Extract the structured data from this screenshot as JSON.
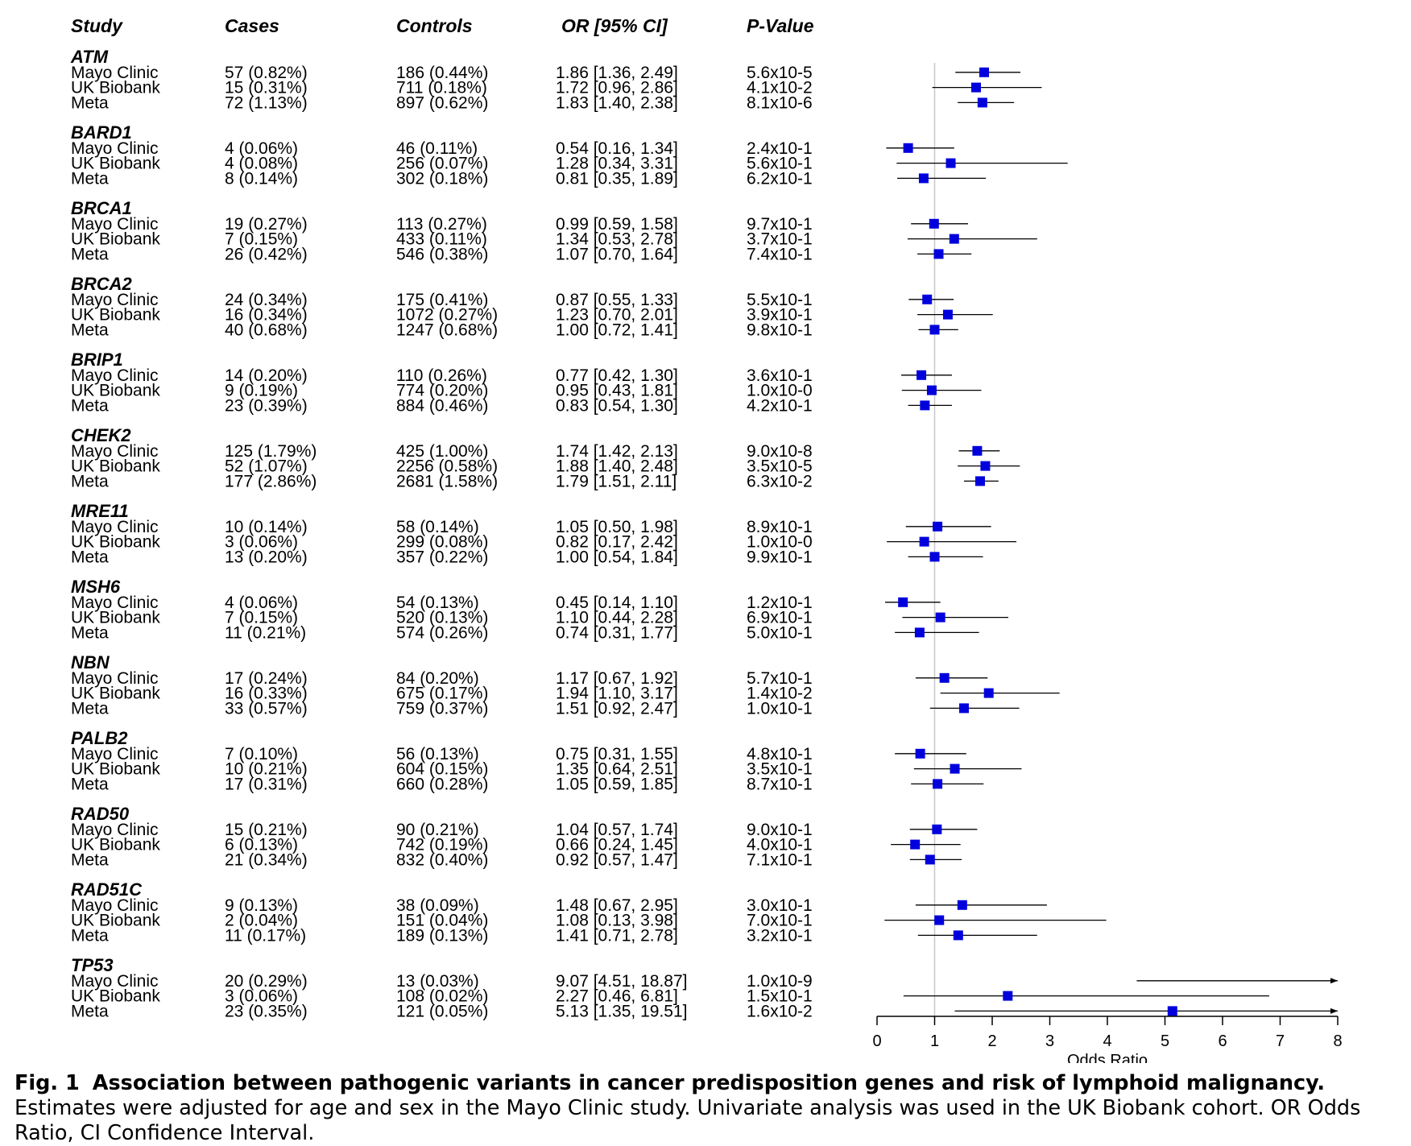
{
  "chart_data": {
    "type": "forest",
    "columns": [
      "Study",
      "Cases",
      "Controls",
      "OR [95% CI]",
      "P-Value"
    ],
    "xlabel": "Odds Ratio",
    "xlim": [
      0,
      8
    ],
    "xticks": [
      0,
      1,
      2,
      3,
      4,
      5,
      6,
      7,
      8
    ],
    "reference_line": 1,
    "marker_color": "#0000dd",
    "groups": [
      {
        "gene": "ATM",
        "rows": [
          {
            "study": "Mayo Clinic",
            "cases": "57 (0.82%)",
            "controls": "186 (0.44%)",
            "or_text": "1.86 [1.36, 2.49]",
            "p": "5.6x10-5",
            "or": 1.86,
            "lo": 1.36,
            "hi": 2.49
          },
          {
            "study": "UK Biobank",
            "cases": "15 (0.31%)",
            "controls": "711 (0.18%)",
            "or_text": "1.72 [0.96, 2.86]",
            "p": "4.1x10-2",
            "or": 1.72,
            "lo": 0.96,
            "hi": 2.86
          },
          {
            "study": "Meta",
            "cases": "72 (1.13%)",
            "controls": "897 (0.62%)",
            "or_text": "1.83 [1.40, 2.38]",
            "p": "8.1x10-6",
            "or": 1.83,
            "lo": 1.4,
            "hi": 2.38
          }
        ]
      },
      {
        "gene": "BARD1",
        "rows": [
          {
            "study": "Mayo Clinic",
            "cases": "4 (0.06%)",
            "controls": "46 (0.11%)",
            "or_text": "0.54 [0.16, 1.34]",
            "p": "2.4x10-1",
            "or": 0.54,
            "lo": 0.16,
            "hi": 1.34
          },
          {
            "study": "UK Biobank",
            "cases": "4 (0.08%)",
            "controls": "256 (0.07%)",
            "or_text": "1.28 [0.34, 3.31]",
            "p": "5.6x10-1",
            "or": 1.28,
            "lo": 0.34,
            "hi": 3.31
          },
          {
            "study": "Meta",
            "cases": "8 (0.14%)",
            "controls": "302 (0.18%)",
            "or_text": "0.81 [0.35, 1.89]",
            "p": "6.2x10-1",
            "or": 0.81,
            "lo": 0.35,
            "hi": 1.89
          }
        ]
      },
      {
        "gene": "BRCA1",
        "rows": [
          {
            "study": "Mayo Clinic",
            "cases": "19 (0.27%)",
            "controls": "113 (0.27%)",
            "or_text": "0.99 [0.59, 1.58]",
            "p": "9.7x10-1",
            "or": 0.99,
            "lo": 0.59,
            "hi": 1.58
          },
          {
            "study": "UK Biobank",
            "cases": "7 (0.15%)",
            "controls": "433 (0.11%)",
            "or_text": "1.34 [0.53, 2.78]",
            "p": "3.7x10-1",
            "or": 1.34,
            "lo": 0.53,
            "hi": 2.78
          },
          {
            "study": "Meta",
            "cases": "26 (0.42%)",
            "controls": "546 (0.38%)",
            "or_text": "1.07 [0.70, 1.64]",
            "p": "7.4x10-1",
            "or": 1.07,
            "lo": 0.7,
            "hi": 1.64
          }
        ]
      },
      {
        "gene": "BRCA2",
        "rows": [
          {
            "study": "Mayo Clinic",
            "cases": "24 (0.34%)",
            "controls": "175 (0.41%)",
            "or_text": "0.87 [0.55, 1.33]",
            "p": "5.5x10-1",
            "or": 0.87,
            "lo": 0.55,
            "hi": 1.33
          },
          {
            "study": "UK Biobank",
            "cases": "16 (0.34%)",
            "controls": "1072 (0.27%)",
            "or_text": "1.23 [0.70, 2.01]",
            "p": "3.9x10-1",
            "or": 1.23,
            "lo": 0.7,
            "hi": 2.01
          },
          {
            "study": "Meta",
            "cases": "40 (0.68%)",
            "controls": "1247 (0.68%)",
            "or_text": "1.00 [0.72, 1.41]",
            "p": "9.8x10-1",
            "or": 1.0,
            "lo": 0.72,
            "hi": 1.41
          }
        ]
      },
      {
        "gene": "BRIP1",
        "rows": [
          {
            "study": "Mayo Clinic",
            "cases": "14 (0.20%)",
            "controls": "110 (0.26%)",
            "or_text": "0.77 [0.42, 1.30]",
            "p": "3.6x10-1",
            "or": 0.77,
            "lo": 0.42,
            "hi": 1.3
          },
          {
            "study": "UK Biobank",
            "cases": "9 (0.19%)",
            "controls": "774 (0.20%)",
            "or_text": "0.95 [0.43, 1.81]",
            "p": "1.0x10-0",
            "or": 0.95,
            "lo": 0.43,
            "hi": 1.81
          },
          {
            "study": "Meta",
            "cases": "23 (0.39%)",
            "controls": "884 (0.46%)",
            "or_text": "0.83 [0.54, 1.30]",
            "p": "4.2x10-1",
            "or": 0.83,
            "lo": 0.54,
            "hi": 1.3
          }
        ]
      },
      {
        "gene": "CHEK2",
        "rows": [
          {
            "study": "Mayo Clinic",
            "cases": "125 (1.79%)",
            "controls": "425 (1.00%)",
            "or_text": "1.74 [1.42, 2.13]",
            "p": "9.0x10-8",
            "or": 1.74,
            "lo": 1.42,
            "hi": 2.13
          },
          {
            "study": "UK Biobank",
            "cases": "52 (1.07%)",
            "controls": "2256 (0.58%)",
            "or_text": "1.88 [1.40, 2.48]",
            "p": "3.5x10-5",
            "or": 1.88,
            "lo": 1.4,
            "hi": 2.48
          },
          {
            "study": "Meta",
            "cases": "177 (2.86%)",
            "controls": "2681 (1.58%)",
            "or_text": "1.79 [1.51, 2.11]",
            "p": "6.3x10-2",
            "or": 1.79,
            "lo": 1.51,
            "hi": 2.11
          }
        ]
      },
      {
        "gene": "MRE11",
        "rows": [
          {
            "study": "Mayo Clinic",
            "cases": "10 (0.14%)",
            "controls": "58 (0.14%)",
            "or_text": "1.05 [0.50, 1.98]",
            "p": "8.9x10-1",
            "or": 1.05,
            "lo": 0.5,
            "hi": 1.98
          },
          {
            "study": "UK Biobank",
            "cases": "3 (0.06%)",
            "controls": "299 (0.08%)",
            "or_text": "0.82 [0.17, 2.42]",
            "p": "1.0x10-0",
            "or": 0.82,
            "lo": 0.17,
            "hi": 2.42
          },
          {
            "study": "Meta",
            "cases": "13 (0.20%)",
            "controls": "357 (0.22%)",
            "or_text": "1.00 [0.54, 1.84]",
            "p": "9.9x10-1",
            "or": 1.0,
            "lo": 0.54,
            "hi": 1.84
          }
        ]
      },
      {
        "gene": "MSH6",
        "rows": [
          {
            "study": "Mayo Clinic",
            "cases": "4 (0.06%)",
            "controls": "54 (0.13%)",
            "or_text": "0.45 [0.14, 1.10]",
            "p": "1.2x10-1",
            "or": 0.45,
            "lo": 0.14,
            "hi": 1.1
          },
          {
            "study": "UK Biobank",
            "cases": "7 (0.15%)",
            "controls": "520 (0.13%)",
            "or_text": "1.10 [0.44, 2.28]",
            "p": "6.9x10-1",
            "or": 1.1,
            "lo": 0.44,
            "hi": 2.28
          },
          {
            "study": "Meta",
            "cases": "11 (0.21%)",
            "controls": "574 (0.26%)",
            "or_text": "0.74 [0.31, 1.77]",
            "p": "5.0x10-1",
            "or": 0.74,
            "lo": 0.31,
            "hi": 1.77
          }
        ]
      },
      {
        "gene": "NBN",
        "rows": [
          {
            "study": "Mayo Clinic",
            "cases": "17 (0.24%)",
            "controls": "84 (0.20%)",
            "or_text": "1.17 [0.67, 1.92]",
            "p": "5.7x10-1",
            "or": 1.17,
            "lo": 0.67,
            "hi": 1.92
          },
          {
            "study": "UK Biobank",
            "cases": "16 (0.33%)",
            "controls": "675 (0.17%)",
            "or_text": "1.94 [1.10, 3.17]",
            "p": "1.4x10-2",
            "or": 1.94,
            "lo": 1.1,
            "hi": 3.17
          },
          {
            "study": "Meta",
            "cases": "33 (0.57%)",
            "controls": "759 (0.37%)",
            "or_text": "1.51 [0.92, 2.47]",
            "p": "1.0x10-1",
            "or": 1.51,
            "lo": 0.92,
            "hi": 2.47
          }
        ]
      },
      {
        "gene": "PALB2",
        "rows": [
          {
            "study": "Mayo Clinic",
            "cases": "7 (0.10%)",
            "controls": "56 (0.13%)",
            "or_text": "0.75 [0.31, 1.55]",
            "p": "4.8x10-1",
            "or": 0.75,
            "lo": 0.31,
            "hi": 1.55
          },
          {
            "study": "UK Biobank",
            "cases": "10 (0.21%)",
            "controls": "604 (0.15%)",
            "or_text": "1.35 [0.64, 2.51]",
            "p": "3.5x10-1",
            "or": 1.35,
            "lo": 0.64,
            "hi": 2.51
          },
          {
            "study": "Meta",
            "cases": "17 (0.31%)",
            "controls": "660 (0.28%)",
            "or_text": "1.05 [0.59, 1.85]",
            "p": "8.7x10-1",
            "or": 1.05,
            "lo": 0.59,
            "hi": 1.85
          }
        ]
      },
      {
        "gene": "RAD50",
        "rows": [
          {
            "study": "Mayo Clinic",
            "cases": "15 (0.21%)",
            "controls": "90 (0.21%)",
            "or_text": "1.04 [0.57, 1.74]",
            "p": "9.0x10-1",
            "or": 1.04,
            "lo": 0.57,
            "hi": 1.74
          },
          {
            "study": "UK Biobank",
            "cases": "6 (0.13%)",
            "controls": "742 (0.19%)",
            "or_text": "0.66 [0.24, 1.45]",
            "p": "4.0x10-1",
            "or": 0.66,
            "lo": 0.24,
            "hi": 1.45
          },
          {
            "study": "Meta",
            "cases": "21 (0.34%)",
            "controls": "832 (0.40%)",
            "or_text": "0.92 [0.57, 1.47]",
            "p": "7.1x10-1",
            "or": 0.92,
            "lo": 0.57,
            "hi": 1.47
          }
        ]
      },
      {
        "gene": "RAD51C",
        "rows": [
          {
            "study": "Mayo Clinic",
            "cases": "9 (0.13%)",
            "controls": "38 (0.09%)",
            "or_text": "1.48 [0.67, 2.95]",
            "p": "3.0x10-1",
            "or": 1.48,
            "lo": 0.67,
            "hi": 2.95
          },
          {
            "study": "UK Biobank",
            "cases": "2 (0.04%)",
            "controls": "151 (0.04%)",
            "or_text": "1.08 [0.13, 3.98]",
            "p": "7.0x10-1",
            "or": 1.08,
            "lo": 0.13,
            "hi": 3.98
          },
          {
            "study": "Meta",
            "cases": "11 (0.17%)",
            "controls": "189 (0.13%)",
            "or_text": "1.41 [0.71, 2.78]",
            "p": "3.2x10-1",
            "or": 1.41,
            "lo": 0.71,
            "hi": 2.78
          }
        ]
      },
      {
        "gene": "TP53",
        "rows": [
          {
            "study": "Mayo Clinic",
            "cases": "20 (0.29%)",
            "controls": "13 (0.03%)",
            "or_text": "9.07 [4.51, 18.87]",
            "p": "1.0x10-9",
            "or": 9.07,
            "lo": 4.51,
            "hi": 18.87
          },
          {
            "study": "UK Biobank",
            "cases": "3 (0.06%)",
            "controls": "108 (0.02%)",
            "or_text": "2.27 [0.46, 6.81]",
            "p": "1.5x10-1",
            "or": 2.27,
            "lo": 0.46,
            "hi": 6.81
          },
          {
            "study": "Meta",
            "cases": "23 (0.35%)",
            "controls": "121 (0.05%)",
            "or_text": "5.13 [1.35, 19.51]",
            "p": "1.6x10-2",
            "or": 5.13,
            "lo": 1.35,
            "hi": 19.51
          }
        ]
      }
    ]
  },
  "caption": {
    "fig_label": "Fig. 1",
    "lead": "Association between pathogenic variants in cancer predisposition genes and risk of lymphoid malignancy.",
    "body": "Estimates were adjusted for age and sex in the Mayo Clinic study. Univariate analysis was used in the UK Biobank cohort. OR Odds Ratio, CI Confidence Interval."
  }
}
